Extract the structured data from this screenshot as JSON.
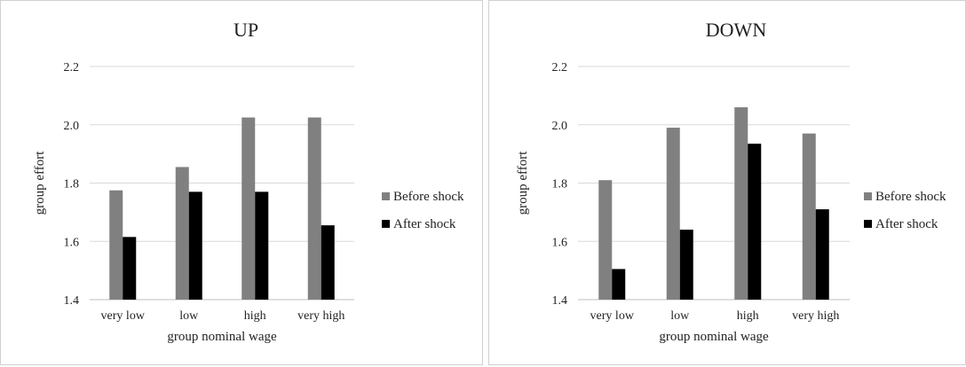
{
  "colors": {
    "before": "#808080",
    "after": "#000000",
    "grid": "#d9d9d9",
    "axis": "#bfbfbf"
  },
  "chart_data": [
    {
      "type": "bar",
      "title": "UP",
      "xlabel": "group nominal wage",
      "ylabel": "group effort",
      "ylim": [
        1.4,
        2.2
      ],
      "yticks": [
        "1.4",
        "1.6",
        "1.8",
        "2.0",
        "2.2"
      ],
      "grid": true,
      "legend_position": "right",
      "categories": [
        "very low",
        "low",
        "high",
        "very high"
      ],
      "series": [
        {
          "name": "Before shock",
          "values": [
            1.775,
            1.855,
            2.025,
            2.025
          ]
        },
        {
          "name": "After shock",
          "values": [
            1.615,
            1.77,
            1.77,
            1.655
          ]
        }
      ]
    },
    {
      "type": "bar",
      "title": "DOWN",
      "xlabel": "group nominal wage",
      "ylabel": "group effort",
      "ylim": [
        1.4,
        2.2
      ],
      "yticks": [
        "1.4",
        "1.6",
        "1.8",
        "2.0",
        "2.2"
      ],
      "grid": true,
      "legend_position": "right",
      "categories": [
        "very low",
        "low",
        "high",
        "very high"
      ],
      "series": [
        {
          "name": "Before shock",
          "values": [
            1.81,
            1.99,
            2.06,
            1.97
          ]
        },
        {
          "name": "After shock",
          "values": [
            1.505,
            1.64,
            1.935,
            1.71
          ]
        }
      ]
    }
  ]
}
